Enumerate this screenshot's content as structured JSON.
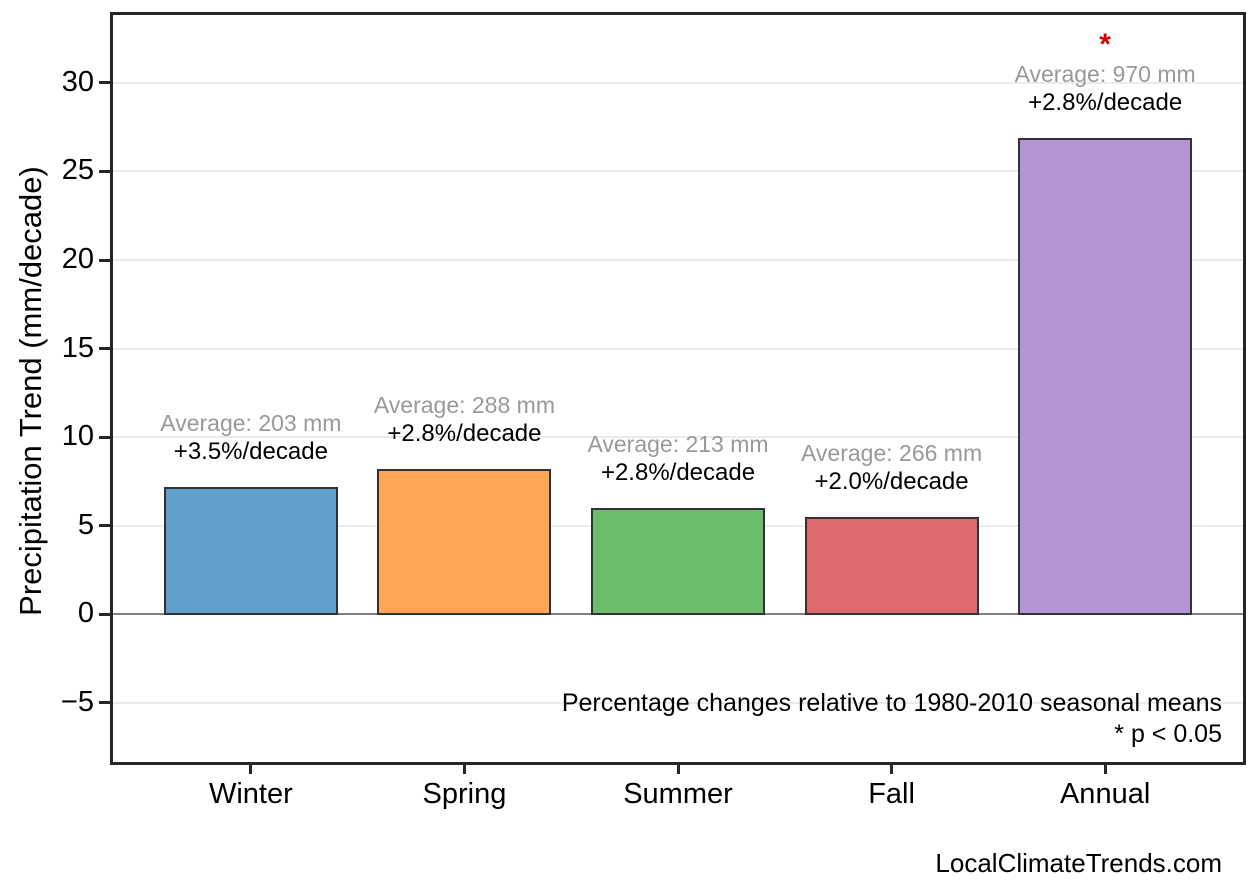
{
  "chart_data": {
    "type": "bar",
    "title": "",
    "ylabel": "Precipitation Trend (mm/decade)",
    "xlabel": "",
    "categories": [
      "Winter",
      "Spring",
      "Summer",
      "Fall",
      "Annual"
    ],
    "values": [
      7.2,
      8.2,
      6.0,
      5.5,
      26.9
    ],
    "bars": [
      {
        "category": "Winter",
        "trend_mm_per_decade": 7.2,
        "average_label": "Average: 203 mm",
        "percent_label": "+3.5%/decade",
        "color": "#5F9FCA",
        "significant": false
      },
      {
        "category": "Spring",
        "trend_mm_per_decade": 8.2,
        "average_label": "Average: 288 mm",
        "percent_label": "+2.8%/decade",
        "color": "#FFA556",
        "significant": false
      },
      {
        "category": "Summer",
        "trend_mm_per_decade": 6.0,
        "average_label": "Average: 213 mm",
        "percent_label": "+2.8%/decade",
        "color": "#6BBC6B",
        "significant": false
      },
      {
        "category": "Fall",
        "trend_mm_per_decade": 5.5,
        "average_label": "Average: 266 mm",
        "percent_label": "+2.0%/decade",
        "color": "#DD686C",
        "significant": false
      },
      {
        "category": "Annual",
        "trend_mm_per_decade": 26.9,
        "average_label": "Average: 970 mm",
        "percent_label": "+2.8%/decade",
        "color": "#B295D2",
        "significant": true
      }
    ],
    "yticks": [
      -5,
      0,
      5,
      10,
      15,
      20,
      25,
      30
    ],
    "ytick_labels": [
      "−5",
      "0",
      "5",
      "10",
      "15",
      "20",
      "25",
      "30"
    ],
    "ylim": [
      -8.5,
      34
    ],
    "grid": true,
    "legend": "none",
    "significance_marker": "*",
    "significance_marker_color": "#DD0000",
    "average_label_color": "#999999",
    "zero_line_color": "#7f7f7f",
    "notes": [
      "Percentage changes relative to 1980-2010 seasonal means",
      "* p < 0.05"
    ],
    "watermark": "LocalClimateTrends.com"
  }
}
